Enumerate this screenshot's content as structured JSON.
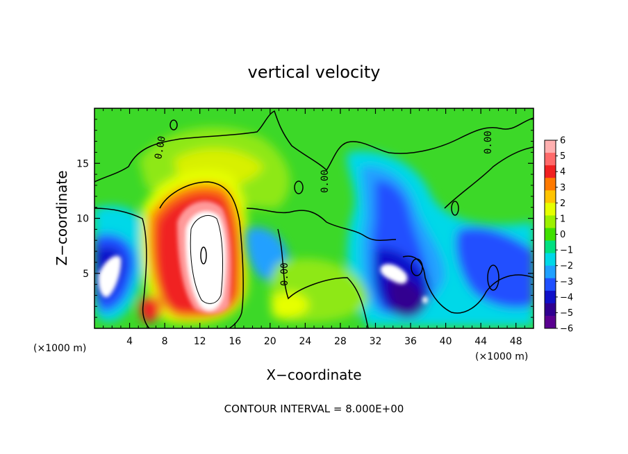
{
  "chart_data": {
    "type": "heatmap",
    "title": "vertical velocity",
    "xlabel": "X−coordinate",
    "ylabel": "Z−coordinate",
    "x_unit_left": "(×1000 m)",
    "x_unit_right": "(×1000 m)",
    "xlim": [
      0,
      50
    ],
    "ylim": [
      0,
      20
    ],
    "x_ticks": [
      4,
      8,
      12,
      16,
      20,
      24,
      28,
      32,
      36,
      40,
      44,
      48
    ],
    "y_ticks": [
      5,
      10,
      15
    ],
    "colorbar": {
      "min": -6,
      "max": 6,
      "tick_labels": [
        "6",
        "5",
        "4",
        "3",
        "2",
        "1",
        "0",
        "−1",
        "−2",
        "−3",
        "−4",
        "−5",
        "−6"
      ],
      "colors": [
        "#ffb0b0",
        "#ff6a6a",
        "#f02020",
        "#ff7a00",
        "#ffc400",
        "#e6ff00",
        "#9cf000",
        "#40e000",
        "#00e080",
        "#00d8e8",
        "#20a0ff",
        "#2050ff",
        "#1010c8",
        "#300090",
        "#5a0090"
      ]
    },
    "contour_label": "0.00",
    "contour_interval_text": "CONTOUR INTERVAL = 8.000E+00",
    "features": [
      {
        "x": 2.5,
        "z": 5.0,
        "value": -6
      },
      {
        "x": 1.5,
        "z": 3.5,
        "value": -4
      },
      {
        "x": 12.5,
        "z": 6.5,
        "value": 6
      },
      {
        "x": 6.5,
        "z": 2.0,
        "value": 4
      },
      {
        "x": 34.0,
        "z": 5.0,
        "value": -6
      },
      {
        "x": 36.5,
        "z": 3.0,
        "value": -5
      },
      {
        "x": 34.0,
        "z": 13.0,
        "value": -3
      },
      {
        "x": 22.0,
        "z": 2.5,
        "value": 2
      }
    ]
  }
}
